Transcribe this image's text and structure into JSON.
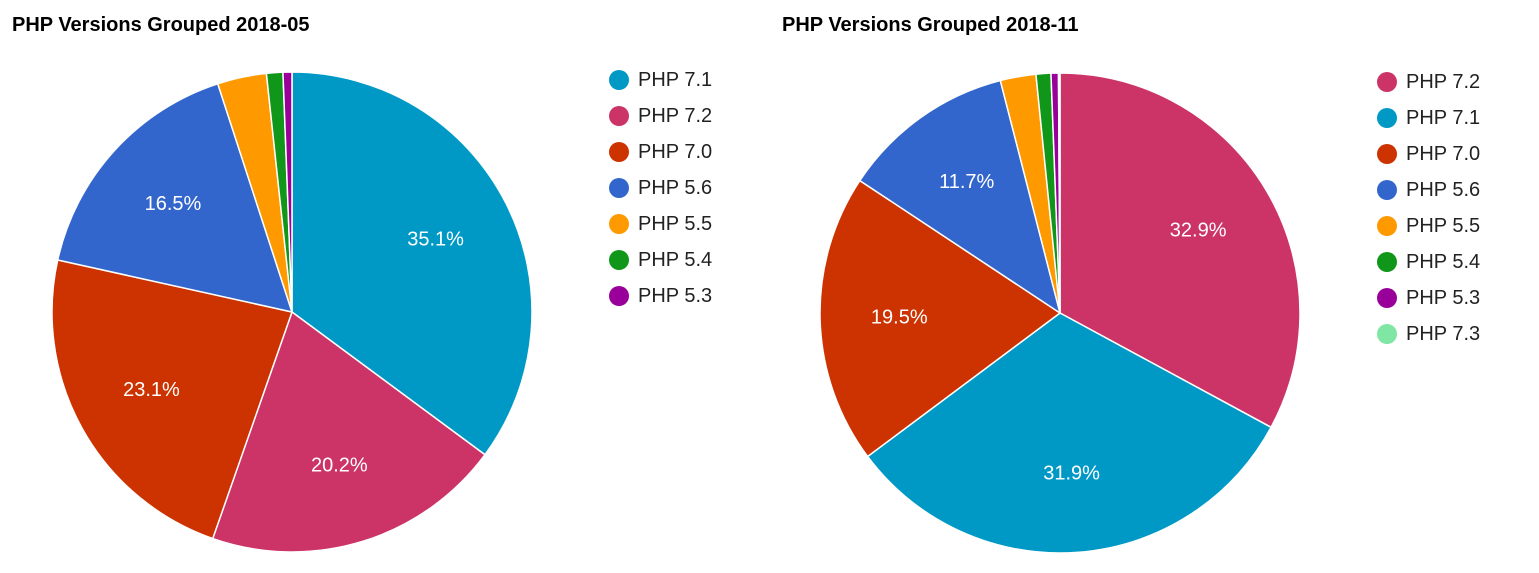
{
  "chart_data": [
    {
      "type": "pie",
      "title": "PHP Versions Grouped 2018-05",
      "legend_position": "right",
      "slices": [
        {
          "label": "PHP 7.1",
          "value": 35.1,
          "color": "#0099c6",
          "display": "35.1%"
        },
        {
          "label": "PHP 7.2",
          "value": 20.2,
          "color": "#cc3366",
          "display": "20.2%"
        },
        {
          "label": "PHP 7.0",
          "value": 23.1,
          "color": "#cc3300",
          "display": "23.1%"
        },
        {
          "label": "PHP 5.6",
          "value": 16.5,
          "color": "#3366cc",
          "display": "16.5%"
        },
        {
          "label": "PHP 5.5",
          "value": 3.3,
          "color": "#ff9900",
          "display": ""
        },
        {
          "label": "PHP 5.4",
          "value": 1.1,
          "color": "#109618",
          "display": ""
        },
        {
          "label": "PHP 5.3",
          "value": 0.6,
          "color": "#990099",
          "display": ""
        }
      ]
    },
    {
      "type": "pie",
      "title": "PHP Versions Grouped 2018-11",
      "legend_position": "right",
      "slices": [
        {
          "label": "PHP 7.2",
          "value": 32.9,
          "color": "#cc3366",
          "display": "32.9%"
        },
        {
          "label": "PHP 7.1",
          "value": 31.9,
          "color": "#0099c6",
          "display": "31.9%"
        },
        {
          "label": "PHP 7.0",
          "value": 19.5,
          "color": "#cc3300",
          "display": "19.5%"
        },
        {
          "label": "PHP 5.6",
          "value": 11.7,
          "color": "#3366cc",
          "display": "11.7%"
        },
        {
          "label": "PHP 5.5",
          "value": 2.4,
          "color": "#ff9900",
          "display": ""
        },
        {
          "label": "PHP 5.4",
          "value": 1.0,
          "color": "#109618",
          "display": ""
        },
        {
          "label": "PHP 5.3",
          "value": 0.5,
          "color": "#990099",
          "display": ""
        },
        {
          "label": "PHP 7.3",
          "value": 0.1,
          "color": "#7fe6a3",
          "display": ""
        }
      ]
    }
  ]
}
